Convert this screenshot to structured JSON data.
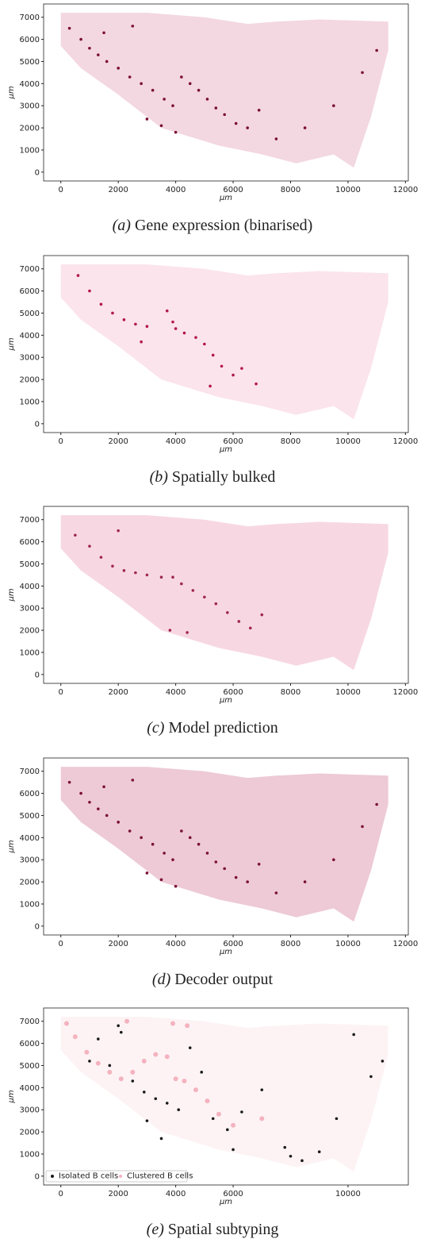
{
  "chart_data": [
    {
      "type": "scatter",
      "caption_label": "(a)",
      "caption": "Gene expression (binarised)",
      "xlabel": "µm",
      "ylabel": "µm",
      "xlim": [
        -600,
        12100
      ],
      "ylim": [
        -400,
        7600
      ],
      "xticks": [
        0,
        2000,
        4000,
        6000,
        8000,
        10000,
        12000
      ],
      "yticks": [
        0,
        1000,
        2000,
        3000,
        4000,
        5000,
        6000,
        7000
      ],
      "series": [
        {
          "color": "#7a0f36",
          "x": [
            300,
            700,
            1000,
            1300,
            1600,
            2000,
            2400,
            2800,
            3200,
            3600,
            3900,
            4200,
            4500,
            4800,
            5100,
            5400,
            5700,
            6100,
            6500,
            6900,
            3000,
            3500,
            4000,
            1500,
            2500,
            7500,
            8500,
            9500,
            10500,
            11000
          ],
          "values": [
            6500,
            6000,
            5600,
            5300,
            5000,
            4700,
            4300,
            4000,
            3700,
            3300,
            3000,
            4300,
            4000,
            3700,
            3300,
            2900,
            2600,
            2200,
            2000,
            2800,
            2400,
            2100,
            1800,
            6300,
            6600,
            1500,
            2000,
            3000,
            4500,
            5500
          ]
        }
      ]
    },
    {
      "type": "scatter",
      "caption_label": "(b)",
      "caption": "Spatially bulked",
      "xlabel": "µm",
      "ylabel": "µm",
      "xlim": [
        -600,
        12100
      ],
      "ylim": [
        -400,
        7600
      ],
      "xticks": [
        0,
        2000,
        4000,
        6000,
        8000,
        10000,
        12000
      ],
      "yticks": [
        0,
        1000,
        2000,
        3000,
        4000,
        5000,
        6000,
        7000
      ],
      "series": [
        {
          "color": "#b3164d",
          "x": [
            600,
            1000,
            1400,
            1800,
            2200,
            2600,
            3000,
            3700,
            3900,
            4300,
            4700,
            5000,
            5300,
            5600,
            6000,
            6300,
            6800,
            4000,
            5200,
            2800
          ],
          "values": [
            6700,
            6000,
            5400,
            5000,
            4700,
            4500,
            4400,
            5100,
            4600,
            4100,
            3900,
            3600,
            3100,
            2600,
            2200,
            2500,
            1800,
            4300,
            1700,
            3700
          ]
        }
      ]
    },
    {
      "type": "scatter",
      "caption_label": "(c)",
      "caption": "Model prediction",
      "xlabel": "µm",
      "ylabel": "µm",
      "xlim": [
        -600,
        12100
      ],
      "ylim": [
        -400,
        7600
      ],
      "xticks": [
        0,
        2000,
        4000,
        6000,
        8000,
        10000,
        12000
      ],
      "yticks": [
        0,
        1000,
        2000,
        3000,
        4000,
        5000,
        6000,
        7000
      ],
      "series": [
        {
          "color": "#a0284f",
          "x": [
            500,
            1000,
            1400,
            1800,
            2200,
            2600,
            3000,
            3500,
            3900,
            4200,
            4600,
            5000,
            5400,
            5800,
            6200,
            6600,
            3800,
            4400,
            2000,
            7000
          ],
          "values": [
            6300,
            5800,
            5300,
            4900,
            4700,
            4600,
            4500,
            4400,
            4400,
            4100,
            3800,
            3500,
            3200,
            2800,
            2400,
            2100,
            2000,
            1900,
            6500,
            2700
          ]
        }
      ]
    },
    {
      "type": "scatter",
      "caption_label": "(d)",
      "caption": "Decoder output",
      "xlabel": "µm",
      "ylabel": "µm",
      "xlim": [
        -600,
        12100
      ],
      "ylim": [
        -400,
        7600
      ],
      "xticks": [
        0,
        2000,
        4000,
        6000,
        8000,
        10000,
        12000
      ],
      "yticks": [
        0,
        1000,
        2000,
        3000,
        4000,
        5000,
        6000,
        7000
      ],
      "series": [
        {
          "color": "#7a0f36",
          "x": [
            300,
            700,
            1000,
            1300,
            1600,
            2000,
            2400,
            2800,
            3200,
            3600,
            3900,
            4200,
            4500,
            4800,
            5100,
            5400,
            5700,
            6100,
            6500,
            6900,
            3000,
            3500,
            4000,
            1500,
            2500,
            7500,
            8500,
            9500,
            10500,
            11000
          ],
          "values": [
            6500,
            6000,
            5600,
            5300,
            5000,
            4700,
            4300,
            4000,
            3700,
            3300,
            3000,
            4300,
            4000,
            3700,
            3300,
            2900,
            2600,
            2200,
            2000,
            2800,
            2400,
            2100,
            1800,
            6300,
            6600,
            1500,
            2000,
            3000,
            4500,
            5500
          ]
        }
      ]
    },
    {
      "type": "scatter",
      "caption_label": "(e)",
      "caption": "Spatial subtyping",
      "xlabel": "µm",
      "ylabel": "µm",
      "xlim": [
        -600,
        12100
      ],
      "ylim": [
        -400,
        7600
      ],
      "xticks": [
        0,
        2000,
        4000,
        6000,
        10000
      ],
      "yticks": [
        0,
        1000,
        2000,
        3000,
        4000,
        5000,
        6000,
        7000
      ],
      "legend": "lower left",
      "series": [
        {
          "name": "Isolated B cells",
          "color": "#1a1a1a",
          "x": [
            500,
            900,
            1300,
            1700,
            2100,
            2500,
            2900,
            3300,
            3700,
            4100,
            4500,
            4900,
            5300,
            5800,
            6300,
            7000,
            7800,
            8400,
            9000,
            9600,
            10200,
            10800,
            11200,
            3000,
            3500,
            4000,
            2000,
            1000,
            6000,
            8000
          ],
          "values": [
            6300,
            5600,
            6200,
            5000,
            6500,
            4300,
            3800,
            3500,
            3300,
            3000,
            5800,
            4700,
            2600,
            2100,
            2900,
            3900,
            1300,
            700,
            1100,
            2600,
            6400,
            4500,
            5200,
            2500,
            1700,
            4400,
            6800,
            5200,
            1200,
            900
          ]
        },
        {
          "name": "Clustered B cells",
          "color": "#f4b3be",
          "x": [
            200,
            500,
            900,
            1300,
            1700,
            2100,
            2500,
            2900,
            3300,
            3700,
            4000,
            4300,
            4700,
            5100,
            5500,
            6000,
            3900,
            4400,
            2300,
            7000
          ],
          "values": [
            6900,
            6300,
            5600,
            5100,
            4700,
            4400,
            4700,
            5200,
            5500,
            5400,
            4400,
            4300,
            3900,
            3400,
            2800,
            2300,
            6900,
            6800,
            7000,
            2600
          ]
        }
      ]
    }
  ]
}
